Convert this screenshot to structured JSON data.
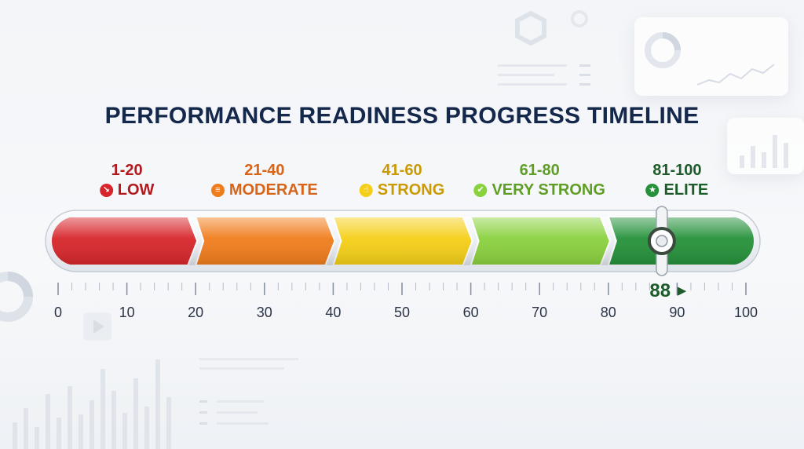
{
  "chart_data": {
    "type": "bar",
    "title": "PERFORMANCE READINESS PROGRESS TIMELINE",
    "xlim": [
      0,
      100
    ],
    "tick_labels": [
      "0",
      "10",
      "20",
      "30",
      "40",
      "50",
      "60",
      "70",
      "80",
      "90",
      "100"
    ],
    "tick_values": [
      0,
      10,
      20,
      30,
      40,
      50,
      60,
      70,
      80,
      90,
      100
    ],
    "segments": [
      {
        "range": "1-20",
        "label": "LOW",
        "start": 0,
        "end": 20,
        "color": "#d7262b",
        "label_color": "#b3181d",
        "icon": "trend-down-icon"
      },
      {
        "range": "21-40",
        "label": "MODERATE",
        "start": 20,
        "end": 40,
        "color": "#f07d1c",
        "label_color": "#d8641a",
        "icon": "bar-chart-icon"
      },
      {
        "range": "41-60",
        "label": "STRONG",
        "start": 40,
        "end": 60,
        "color": "#f5cf17",
        "label_color": "#c99a06",
        "icon": "thumbs-up-icon"
      },
      {
        "range": "61-80",
        "label": "VERY STRONG",
        "start": 60,
        "end": 80,
        "color": "#8ad13e",
        "label_color": "#5f9e24",
        "icon": "check-icon"
      },
      {
        "range": "81-100",
        "label": "ELITE",
        "start": 80,
        "end": 100,
        "color": "#25913a",
        "label_color": "#1d5b2a",
        "icon": "trophy-icon"
      }
    ],
    "marker": {
      "value": 88,
      "label": "88"
    }
  }
}
